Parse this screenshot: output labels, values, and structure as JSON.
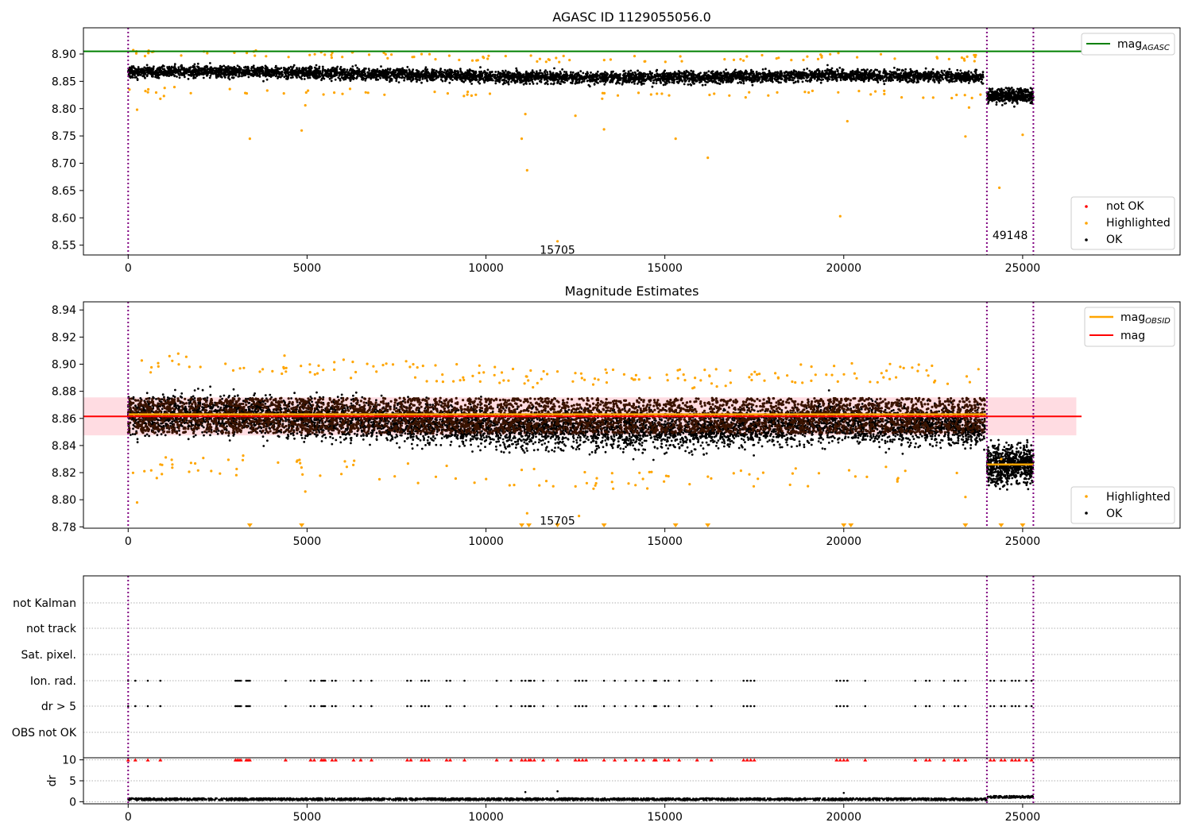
{
  "colors": {
    "ok": "#000000",
    "highlighted": "#ffa500",
    "not_ok": "#ff0000",
    "agasc_line": "#008000",
    "mag_line": "#ff0000",
    "obsid_line": "#ffa500",
    "band": "#ffc0cb",
    "obs_vline": "#800080",
    "dotted_grid": "#b0b0b0"
  },
  "chart_data": [
    {
      "type": "scatter",
      "title": "AGASC ID 1129055056.0",
      "xlabel": "",
      "ylabel": "",
      "xlim": [
        -1250,
        29400
      ],
      "ylim": [
        8.532,
        8.948
      ],
      "xticks": [
        "0",
        "5000",
        "10000",
        "15000",
        "20000",
        "25000"
      ],
      "yticks": [
        "8.55",
        "8.60",
        "8.65",
        "8.70",
        "8.75",
        "8.80",
        "8.85",
        "8.90"
      ],
      "mag_agasc": 8.905,
      "obs_boundaries": [
        0,
        24000,
        25300
      ],
      "annotations": [
        {
          "text": "15705",
          "x": 12000,
          "y": 8.54
        },
        {
          "text": "49148",
          "x": 24650,
          "y": 8.567
        }
      ],
      "ok_trend": {
        "x": [
          0,
          3000,
          8000,
          12000,
          16000,
          20000,
          23900
        ],
        "y": [
          8.868,
          8.868,
          8.862,
          8.857,
          8.857,
          8.862,
          8.858
        ]
      },
      "ok_tail": {
        "x_range": [
          24000,
          25300
        ],
        "center": 8.824
      },
      "highlighted_outliers": [
        [
          250,
          8.798
        ],
        [
          900,
          8.818
        ],
        [
          1000,
          8.823
        ],
        [
          3400,
          8.745
        ],
        [
          4850,
          8.76
        ],
        [
          4950,
          8.806
        ],
        [
          11000,
          8.745
        ],
        [
          11100,
          8.79
        ],
        [
          11150,
          8.687
        ],
        [
          12000,
          8.557
        ],
        [
          12500,
          8.787
        ],
        [
          13300,
          8.762
        ],
        [
          15300,
          8.745
        ],
        [
          16200,
          8.71
        ],
        [
          19900,
          8.603
        ],
        [
          20100,
          8.777
        ],
        [
          23400,
          8.749
        ],
        [
          23500,
          8.802
        ],
        [
          24350,
          8.655
        ],
        [
          25000,
          8.752
        ]
      ],
      "legend": {
        "placement": "upper-right",
        "entries": [
          {
            "label": "mag",
            "subscript": "AGASC"
          }
        ]
      },
      "legend2": {
        "placement": "lower-right",
        "entries": [
          "not OK",
          "Highlighted",
          "OK"
        ]
      }
    },
    {
      "type": "scatter",
      "title": "Magnitude Estimates",
      "xlabel": "",
      "ylabel": "",
      "xlim": [
        -1250,
        29400
      ],
      "ylim": [
        8.779,
        8.946
      ],
      "xticks": [
        "0",
        "5000",
        "10000",
        "15000",
        "20000",
        "25000"
      ],
      "yticks": [
        "8.78",
        "8.80",
        "8.82",
        "8.84",
        "8.86",
        "8.88",
        "8.90",
        "8.92",
        "8.94"
      ],
      "mag": 8.8615,
      "mag_band": [
        8.8475,
        8.8755
      ],
      "mag_obsid": [
        {
          "x_range": [
            0,
            24000
          ],
          "y": 8.863
        },
        {
          "x_range": [
            24000,
            25300
          ],
          "y": 8.826
        }
      ],
      "obs_boundaries": [
        0,
        24000,
        25300
      ],
      "annotations": [
        {
          "text": "15705",
          "x": 12000,
          "y": 8.784
        }
      ],
      "offscale_marker_x": [
        3400,
        4850,
        11000,
        11200,
        12000,
        13300,
        15300,
        16200,
        20000,
        20200,
        23400,
        24400,
        25000
      ],
      "legend": {
        "placement": "upper-right",
        "entries": [
          {
            "label": "mag",
            "subscript": "OBSID"
          },
          {
            "label": "mag",
            "subscript": ""
          }
        ]
      },
      "legend2": {
        "placement": "lower-right",
        "entries": [
          "Highlighted",
          "OK"
        ]
      }
    },
    {
      "type": "scatter",
      "title": "",
      "xlabel": "",
      "ylabel": "",
      "xlim": [
        -1250,
        29400
      ],
      "category_labels": [
        "not Kalman",
        "not track",
        "Sat. pixel.",
        "Ion. rad.",
        "dr > 5",
        "OBS not OK"
      ],
      "flag_x": [
        0,
        200,
        550,
        900,
        3000,
        3050,
        3100,
        3150,
        3300,
        3350,
        3400,
        4400,
        5100,
        5200,
        5400,
        5450,
        5500,
        5700,
        5800,
        6300,
        6500,
        6800,
        7800,
        7900,
        8200,
        8300,
        8400,
        8900,
        9000,
        9400,
        10300,
        10700,
        11000,
        11100,
        11200,
        11250,
        11350,
        11600,
        12000,
        12500,
        12600,
        12700,
        12800,
        13300,
        13600,
        13900,
        14200,
        14400,
        14700,
        14750,
        15000,
        15100,
        15400,
        15900,
        16300,
        17200,
        17300,
        17400,
        17500,
        19800,
        19900,
        20000,
        20100,
        20600,
        22000,
        22300,
        22400,
        22800,
        23100,
        23200,
        23400,
        24100,
        24200,
        24400,
        24500,
        24700,
        24800,
        24900,
        25100,
        25250
      ],
      "obs_boundaries": [
        0,
        24000,
        25300
      ]
    },
    {
      "type": "scatter",
      "title": "",
      "xlabel": "",
      "ylabel": "dr",
      "xlim": [
        -1250,
        29400
      ],
      "ylim": [
        -0.5,
        10.5
      ],
      "yticks": [
        "0",
        "5",
        "10"
      ],
      "xticks": [
        "0",
        "5000",
        "10000",
        "15000",
        "20000",
        "25000"
      ],
      "red_at_10_x_same_as_flags": true,
      "dr_outliers": [
        [
          11100,
          2.3
        ],
        [
          12000,
          2.5
        ],
        [
          20000,
          2.1
        ]
      ],
      "obs_boundaries": [
        0,
        24000,
        25300
      ]
    }
  ]
}
